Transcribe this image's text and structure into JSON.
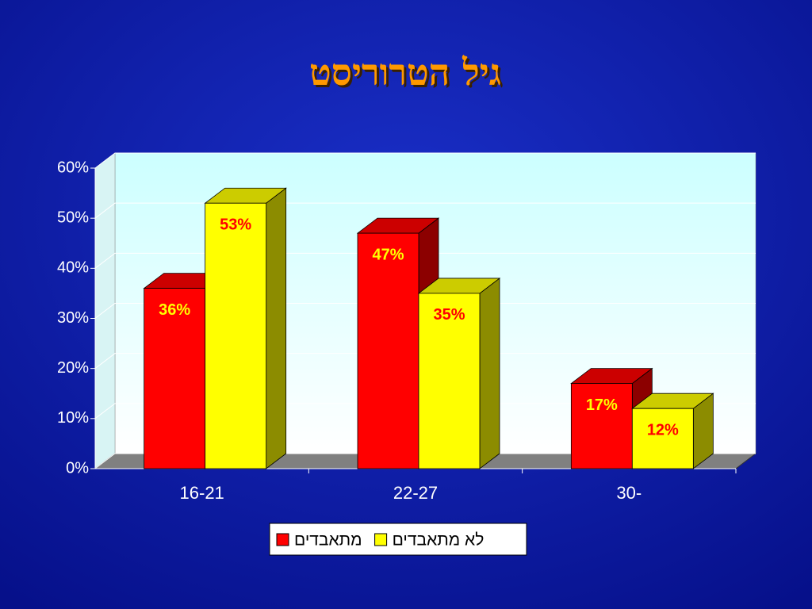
{
  "chart_data": {
    "type": "bar3d",
    "title": "גיל הטרוריסט",
    "categories": [
      "16-21",
      "22-27",
      "30-"
    ],
    "series": [
      {
        "name": "מתאבדים",
        "color": "#ff0000",
        "values": [
          36,
          47,
          17
        ],
        "value_labels": [
          "36%",
          "47%",
          "17%"
        ]
      },
      {
        "name": "לא מתאבדים",
        "color": "#ffff00",
        "values": [
          53,
          35,
          12
        ],
        "value_labels": [
          "53%",
          "35%",
          "12%"
        ]
      }
    ],
    "ylim": [
      0,
      60
    ],
    "yticks": [
      {
        "value": 0,
        "label": "0%"
      },
      {
        "value": 10,
        "label": "10%"
      },
      {
        "value": 20,
        "label": "20%"
      },
      {
        "value": 30,
        "label": "30%"
      },
      {
        "value": 40,
        "label": "40%"
      },
      {
        "value": 50,
        "label": "50%"
      },
      {
        "value": 60,
        "label": "60%"
      }
    ],
    "grid": true,
    "legend": "bottom"
  }
}
